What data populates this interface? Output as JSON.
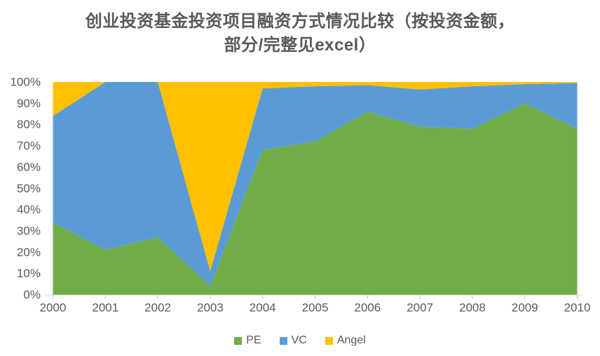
{
  "title": {
    "line1": "创业投资基金投资项目融资方式情况比较（按投资金额，",
    "line2": "部分/完整见excel）"
  },
  "chart_data": {
    "type": "area",
    "stacking": "percent",
    "title": "创业投资基金投资项目融资方式情况比较（按投资金额，部分/完整见excel）",
    "x": [
      "2000",
      "2001",
      "2002",
      "2003",
      "2004",
      "2005",
      "2006",
      "2007",
      "2008",
      "2009",
      "2010"
    ],
    "series": [
      {
        "name": "PE",
        "color": "#70AD47",
        "values": [
          34,
          21,
          27,
          4,
          68,
          72,
          86,
          79,
          78,
          90,
          78
        ]
      },
      {
        "name": "VC",
        "color": "#5B9BD5",
        "values": [
          50,
          79,
          73,
          7,
          29,
          26,
          12.5,
          17.5,
          20,
          9,
          21.5
        ]
      },
      {
        "name": "Angel",
        "color": "#FFC000",
        "values": [
          16,
          0,
          0,
          89,
          3,
          2,
          1.5,
          3.5,
          2,
          1,
          0.5
        ]
      }
    ],
    "y_ticks": [
      "0%",
      "10%",
      "20%",
      "30%",
      "40%",
      "50%",
      "60%",
      "70%",
      "80%",
      "90%",
      "100%"
    ],
    "ylim": [
      0,
      100
    ],
    "xlabel": "",
    "ylabel": "",
    "gridlines": false,
    "legend_position": "bottom"
  },
  "style": {
    "text_color": "#595959",
    "axis_line_color": "#D9D9D9",
    "tick_color": "#BFBFBF",
    "background": "#FFFFFF"
  }
}
